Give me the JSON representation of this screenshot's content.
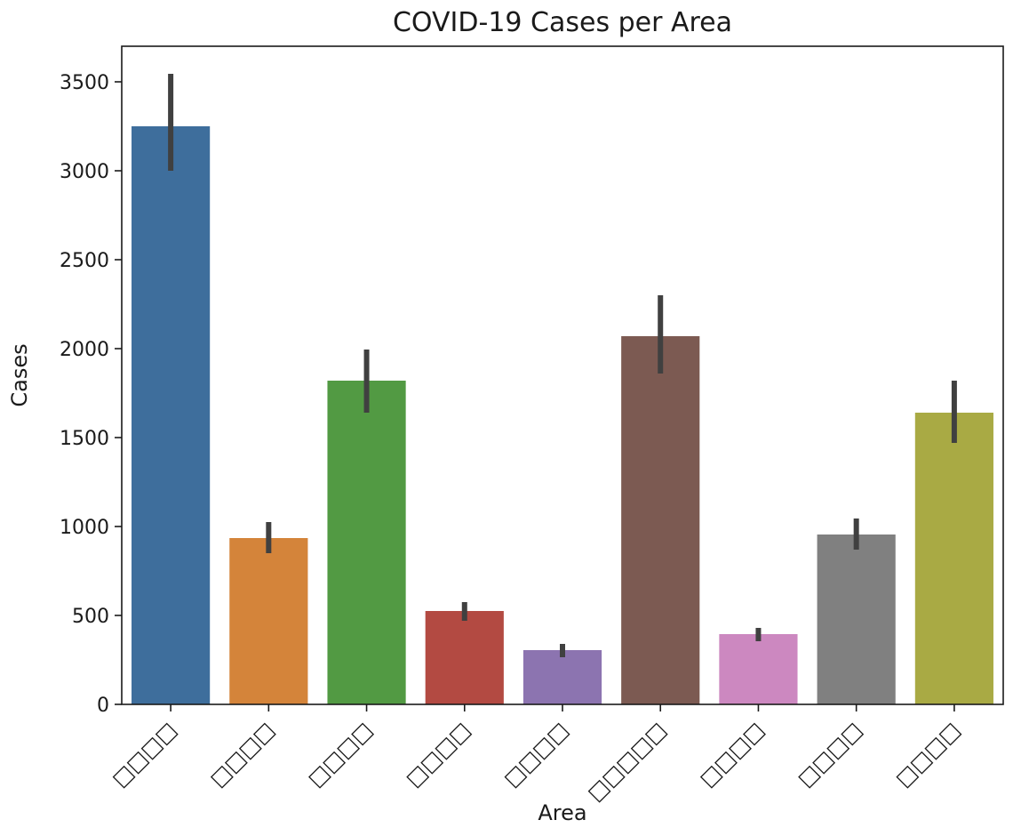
{
  "chart_data": {
    "type": "bar",
    "title": "COVID-19 Cases per Area",
    "xlabel": "Area",
    "ylabel": "Cases",
    "ylim": [
      0,
      3700
    ],
    "yticks": [
      "0",
      "500",
      "1000",
      "1500",
      "2000",
      "2500",
      "3000",
      "3500"
    ],
    "ytick_values": [
      0,
      500,
      1000,
      1500,
      2000,
      2500,
      3000,
      3500
    ],
    "categories": [
      "□□□□",
      "□□□□",
      "□□□□",
      "□□□□",
      "□□□□",
      "□□□□□",
      "□□□□",
      "□□□□",
      "□□□□"
    ],
    "values": [
      3250,
      935,
      1820,
      525,
      305,
      2070,
      395,
      955,
      1640
    ],
    "error_low": [
      3000,
      850,
      1640,
      470,
      265,
      1860,
      355,
      870,
      1470
    ],
    "error_high": [
      3545,
      1025,
      1995,
      575,
      340,
      2300,
      430,
      1045,
      1820
    ],
    "colors": [
      "#3e6e9c",
      "#d4843a",
      "#529a43",
      "#b34a42",
      "#8c74b0",
      "#7c5a52",
      "#cc88c0",
      "#808080",
      "#a9aa44"
    ],
    "errorbar_color": "#404040",
    "grid": false,
    "legend": "none"
  }
}
